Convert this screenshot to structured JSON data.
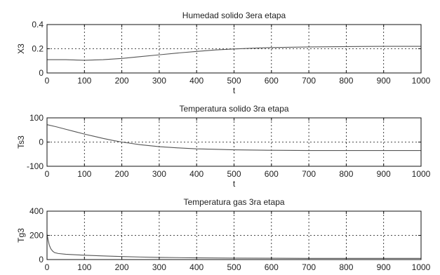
{
  "chart_data": [
    {
      "type": "line",
      "title": "Humedad solido 3era etapa",
      "xlabel": "t",
      "ylabel": "X3",
      "xlim": [
        0,
        1000
      ],
      "ylim": [
        0,
        0.4
      ],
      "x_ticks": [
        0,
        100,
        200,
        300,
        400,
        500,
        600,
        700,
        800,
        900,
        1000
      ],
      "x_tick_labels": [
        "0",
        "100",
        "200",
        "300",
        "400",
        "500",
        "600",
        "700",
        "800",
        "900",
        "1000"
      ],
      "y_ticks": [
        0,
        0.2,
        0.4
      ],
      "y_tick_labels": [
        "0",
        "0.2",
        "0.4"
      ],
      "grid": true,
      "series": [
        {
          "x": [
            0,
            50,
            100,
            150,
            200,
            250,
            300,
            350,
            400,
            450,
            500,
            550,
            600,
            700,
            800,
            900,
            1000
          ],
          "y": [
            0.11,
            0.11,
            0.105,
            0.11,
            0.12,
            0.135,
            0.15,
            0.165,
            0.178,
            0.19,
            0.198,
            0.205,
            0.21,
            0.215,
            0.218,
            0.22,
            0.22
          ]
        }
      ]
    },
    {
      "type": "line",
      "title": "Temperatura solido 3ra etapa",
      "xlabel": "t",
      "ylabel": "Ts3",
      "xlim": [
        0,
        1000
      ],
      "ylim": [
        -100,
        100
      ],
      "x_ticks": [
        0,
        100,
        200,
        300,
        400,
        500,
        600,
        700,
        800,
        900,
        1000
      ],
      "x_tick_labels": [
        "0",
        "100",
        "200",
        "300",
        "400",
        "500",
        "600",
        "700",
        "800",
        "900",
        "1000"
      ],
      "y_ticks": [
        -100,
        0,
        100
      ],
      "y_tick_labels": [
        "-100",
        "0",
        "100"
      ],
      "grid": true,
      "series": [
        {
          "x": [
            0,
            25,
            50,
            75,
            100,
            125,
            150,
            175,
            200,
            250,
            300,
            350,
            400,
            450,
            500,
            600,
            700,
            800,
            900,
            1000
          ],
          "y": [
            72,
            63,
            53,
            43,
            33,
            24,
            15,
            7,
            0,
            -11,
            -19,
            -24,
            -28,
            -30,
            -32,
            -34,
            -35,
            -35,
            -35,
            -35
          ]
        }
      ]
    },
    {
      "type": "line",
      "title": "Temperatura gas 3ra etapa",
      "xlabel": "",
      "ylabel": "Tg3",
      "xlim": [
        0,
        1000
      ],
      "ylim": [
        0,
        400
      ],
      "x_ticks": [
        0,
        100,
        200,
        300,
        400,
        500,
        600,
        700,
        800,
        900,
        1000
      ],
      "x_tick_labels": [
        "0",
        "100",
        "200",
        "300",
        "400",
        "500",
        "600",
        "700",
        "800",
        "900",
        "1000"
      ],
      "y_ticks": [
        0,
        200,
        400
      ],
      "y_tick_labels": [
        "0",
        "200",
        "400"
      ],
      "grid": true,
      "series": [
        {
          "x": [
            0,
            3,
            6,
            10,
            15,
            20,
            30,
            50,
            100,
            150,
            200,
            250,
            300,
            400,
            500,
            600,
            700,
            800,
            900,
            1000
          ],
          "y": [
            210,
            160,
            120,
            90,
            70,
            58,
            50,
            44,
            36,
            30,
            25,
            21,
            18,
            14,
            12,
            11,
            10,
            10,
            10,
            10
          ]
        }
      ]
    }
  ]
}
